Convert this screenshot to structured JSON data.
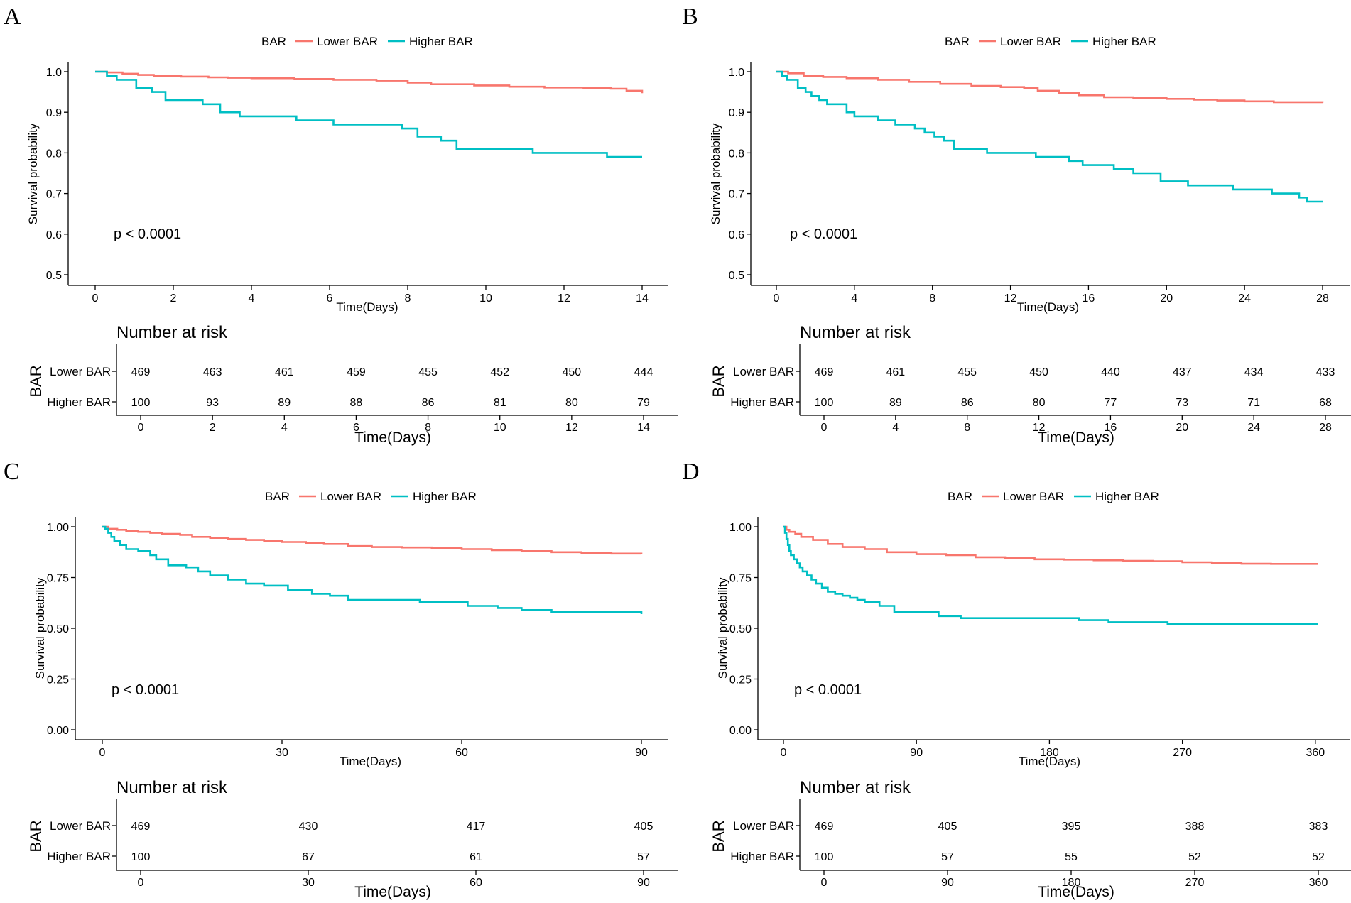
{
  "chart_data": [
    {
      "panel": "A",
      "type": "line",
      "subtype": "kaplan-meier",
      "legend_title": "BAR",
      "series": [
        {
          "name": "Lower BAR",
          "color": "#F8766D",
          "x": [
            0,
            0.3,
            0.7,
            1.1,
            1.5,
            2.2,
            2.9,
            3.4,
            4.0,
            5.1,
            6.1,
            7.2,
            8.0,
            8.6,
            9.7,
            10.6,
            11.5,
            12.5,
            13.2,
            13.6,
            14.0
          ],
          "y": [
            1.0,
            0.998,
            0.995,
            0.992,
            0.99,
            0.988,
            0.986,
            0.985,
            0.984,
            0.982,
            0.98,
            0.978,
            0.973,
            0.969,
            0.966,
            0.963,
            0.961,
            0.96,
            0.958,
            0.953,
            0.947
          ]
        },
        {
          "name": "Higher BAR",
          "color": "#00BFC4",
          "x": [
            0,
            0.3,
            0.55,
            1.05,
            1.45,
            1.8,
            2.3,
            2.75,
            3.2,
            3.7,
            5.15,
            6.1,
            6.85,
            7.85,
            8.25,
            8.85,
            9.25,
            10.7,
            11.2,
            13.1,
            14.0
          ],
          "y": [
            1.0,
            0.99,
            0.98,
            0.96,
            0.95,
            0.93,
            0.93,
            0.92,
            0.9,
            0.89,
            0.88,
            0.87,
            0.87,
            0.86,
            0.84,
            0.83,
            0.81,
            0.81,
            0.8,
            0.79,
            0.79
          ]
        }
      ],
      "xlim": [
        0,
        14
      ],
      "ylim": [
        0.5,
        1.0
      ],
      "x_ticks": [
        0,
        2,
        4,
        6,
        8,
        10,
        12,
        14
      ],
      "y_ticks": [
        0.5,
        0.6,
        0.7,
        0.8,
        0.9,
        1.0
      ],
      "y_tick_labels": [
        "0.5",
        "0.6",
        "0.7",
        "0.8",
        "0.9",
        "1.0"
      ],
      "xlabel": "Time(Days)",
      "ylabel": "Survival probability",
      "p_value": "p < 0.0001",
      "risk_table": {
        "title": "Number at risk",
        "strata_title": "BAR",
        "times": [
          0,
          2,
          4,
          6,
          8,
          10,
          12,
          14
        ],
        "rows": [
          {
            "label": "Lower BAR",
            "values": [
              469,
              463,
              461,
              459,
              455,
              452,
              450,
              444
            ]
          },
          {
            "label": "Higher BAR",
            "values": [
              100,
              93,
              89,
              88,
              86,
              81,
              80,
              79
            ]
          }
        ],
        "xlabel": "Time(Days)"
      }
    },
    {
      "panel": "B",
      "type": "line",
      "subtype": "kaplan-meier",
      "legend_title": "BAR",
      "series": [
        {
          "name": "Lower BAR",
          "color": "#F8766D",
          "x": [
            0,
            0.6,
            1.4,
            2.4,
            3.6,
            5.2,
            6.8,
            8.4,
            10.0,
            11.5,
            12.7,
            13.4,
            14.5,
            15.5,
            16.8,
            18.3,
            20.0,
            21.4,
            22.6,
            24.0,
            25.5,
            28.0
          ],
          "y": [
            1.0,
            0.996,
            0.99,
            0.987,
            0.984,
            0.98,
            0.975,
            0.97,
            0.965,
            0.962,
            0.96,
            0.953,
            0.947,
            0.942,
            0.937,
            0.935,
            0.933,
            0.931,
            0.929,
            0.927,
            0.925,
            0.924
          ]
        },
        {
          "name": "Higher BAR",
          "color": "#00BFC4",
          "x": [
            0,
            0.3,
            0.55,
            1.1,
            1.5,
            1.8,
            2.2,
            2.6,
            3.3,
            3.6,
            4.0,
            5.2,
            6.1,
            7.1,
            7.6,
            8.1,
            8.6,
            9.1,
            10.8,
            12.4,
            13.3,
            14.5,
            15.0,
            15.7,
            17.3,
            18.3,
            18.7,
            19.7,
            21.1,
            22.5,
            23.4,
            24.7,
            25.4,
            26.2,
            26.8,
            27.2,
            28.0
          ],
          "y": [
            1.0,
            0.99,
            0.98,
            0.96,
            0.95,
            0.94,
            0.93,
            0.92,
            0.92,
            0.9,
            0.89,
            0.88,
            0.87,
            0.86,
            0.85,
            0.84,
            0.83,
            0.81,
            0.8,
            0.8,
            0.79,
            0.79,
            0.78,
            0.77,
            0.76,
            0.75,
            0.75,
            0.73,
            0.72,
            0.72,
            0.71,
            0.71,
            0.7,
            0.7,
            0.69,
            0.68,
            0.68
          ]
        }
      ],
      "xlim": [
        0,
        28
      ],
      "ylim": [
        0.5,
        1.0
      ],
      "x_ticks": [
        0,
        4,
        8,
        12,
        16,
        20,
        24,
        28
      ],
      "y_ticks": [
        0.5,
        0.6,
        0.7,
        0.8,
        0.9,
        1.0
      ],
      "y_tick_labels": [
        "0.5",
        "0.6",
        "0.7",
        "0.8",
        "0.9",
        "1.0"
      ],
      "xlabel": "Time(Days)",
      "ylabel": "Survival probability",
      "p_value": "p < 0.0001",
      "risk_table": {
        "title": "Number at risk",
        "strata_title": "BAR",
        "times": [
          0,
          4,
          8,
          12,
          16,
          20,
          24,
          28
        ],
        "rows": [
          {
            "label": "Lower BAR",
            "values": [
              469,
              461,
              455,
              450,
              440,
              437,
              434,
              433
            ]
          },
          {
            "label": "Higher BAR",
            "values": [
              100,
              89,
              86,
              80,
              77,
              73,
              71,
              68
            ]
          }
        ],
        "xlabel": "Time(Days)"
      }
    },
    {
      "panel": "C",
      "type": "line",
      "subtype": "kaplan-meier",
      "legend_title": "BAR",
      "series": [
        {
          "name": "Lower BAR",
          "color": "#F8766D",
          "x": [
            0,
            1,
            2.5,
            4,
            6,
            8,
            10,
            13,
            15,
            18,
            21,
            24,
            27,
            30,
            34,
            37,
            41,
            45,
            50,
            55,
            60,
            65,
            70,
            75,
            80,
            85,
            90
          ],
          "y": [
            1.0,
            0.99,
            0.985,
            0.98,
            0.975,
            0.97,
            0.965,
            0.96,
            0.95,
            0.945,
            0.94,
            0.935,
            0.93,
            0.925,
            0.92,
            0.915,
            0.905,
            0.9,
            0.898,
            0.895,
            0.89,
            0.885,
            0.88,
            0.875,
            0.87,
            0.868,
            0.865
          ]
        },
        {
          "name": "Higher BAR",
          "color": "#00BFC4",
          "x": [
            0,
            0.5,
            1,
            1.5,
            2,
            3,
            4,
            6,
            8,
            9,
            11,
            14,
            16,
            18,
            21,
            24,
            27,
            31,
            35,
            38,
            41,
            48,
            53,
            56,
            61,
            66,
            70,
            75,
            80,
            89,
            90
          ],
          "y": [
            1.0,
            0.99,
            0.97,
            0.95,
            0.93,
            0.91,
            0.89,
            0.88,
            0.86,
            0.84,
            0.81,
            0.8,
            0.78,
            0.76,
            0.74,
            0.72,
            0.71,
            0.69,
            0.67,
            0.66,
            0.64,
            0.64,
            0.63,
            0.63,
            0.61,
            0.6,
            0.59,
            0.58,
            0.58,
            0.58,
            0.57
          ]
        }
      ],
      "xlim": [
        0,
        90
      ],
      "ylim": [
        0.0,
        1.0
      ],
      "x_ticks": [
        0,
        30,
        60,
        90
      ],
      "y_ticks": [
        0.0,
        0.25,
        0.5,
        0.75,
        1.0
      ],
      "y_tick_labels": [
        "0.00",
        "0.25",
        "0.50",
        "0.75",
        "1.00"
      ],
      "xlabel": "Time(Days)",
      "ylabel": "Survival probability",
      "p_value": "p < 0.0001",
      "risk_table": {
        "title": "Number at risk",
        "strata_title": "BAR",
        "times": [
          0,
          30,
          60,
          90
        ],
        "rows": [
          {
            "label": "Lower BAR",
            "values": [
              469,
              430,
              417,
              405
            ]
          },
          {
            "label": "Higher BAR",
            "values": [
              100,
              67,
              61,
              57
            ]
          }
        ],
        "xlabel": "Time(Days)"
      }
    },
    {
      "panel": "D",
      "type": "line",
      "subtype": "kaplan-meier",
      "legend_title": "BAR",
      "series": [
        {
          "name": "Lower BAR",
          "color": "#F8766D",
          "x": [
            0,
            2,
            4,
            8,
            12,
            20,
            30,
            40,
            55,
            70,
            90,
            110,
            130,
            150,
            170,
            190,
            210,
            230,
            250,
            270,
            290,
            310,
            330,
            350,
            362
          ],
          "y": [
            1.0,
            0.985,
            0.975,
            0.965,
            0.95,
            0.935,
            0.915,
            0.9,
            0.89,
            0.875,
            0.865,
            0.86,
            0.85,
            0.845,
            0.84,
            0.838,
            0.835,
            0.832,
            0.83,
            0.825,
            0.822,
            0.818,
            0.817,
            0.817,
            0.817
          ]
        },
        {
          "name": "Higher BAR",
          "color": "#00BFC4",
          "x": [
            0,
            1,
            2,
            3,
            4,
            5,
            7,
            9,
            11,
            13,
            16,
            19,
            22,
            26,
            30,
            35,
            40,
            45,
            50,
            55,
            65,
            75,
            90,
            105,
            120,
            180,
            200,
            220,
            260,
            300,
            362
          ],
          "y": [
            1.0,
            0.97,
            0.94,
            0.91,
            0.88,
            0.86,
            0.84,
            0.82,
            0.8,
            0.78,
            0.76,
            0.74,
            0.72,
            0.7,
            0.68,
            0.67,
            0.66,
            0.65,
            0.64,
            0.63,
            0.61,
            0.58,
            0.58,
            0.56,
            0.55,
            0.55,
            0.54,
            0.53,
            0.52,
            0.52,
            0.52
          ]
        }
      ],
      "xlim": [
        0,
        362
      ],
      "ylim": [
        0.0,
        1.0
      ],
      "x_ticks": [
        0,
        90,
        180,
        270,
        360
      ],
      "y_ticks": [
        0.0,
        0.25,
        0.5,
        0.75,
        1.0
      ],
      "y_tick_labels": [
        "0.00",
        "0.25",
        "0.50",
        "0.75",
        "1.00"
      ],
      "xlabel": "Time(Days)",
      "ylabel": "Survival probability",
      "p_value": "p < 0.0001",
      "risk_table": {
        "title": "Number at risk",
        "strata_title": "BAR",
        "times": [
          0,
          90,
          180,
          270,
          360
        ],
        "rows": [
          {
            "label": "Lower BAR",
            "values": [
              469,
              405,
              395,
              388,
              383
            ]
          },
          {
            "label": "Higher BAR",
            "values": [
              100,
              57,
              55,
              52,
              52
            ]
          }
        ],
        "xlabel": "Time(Days)"
      }
    }
  ]
}
